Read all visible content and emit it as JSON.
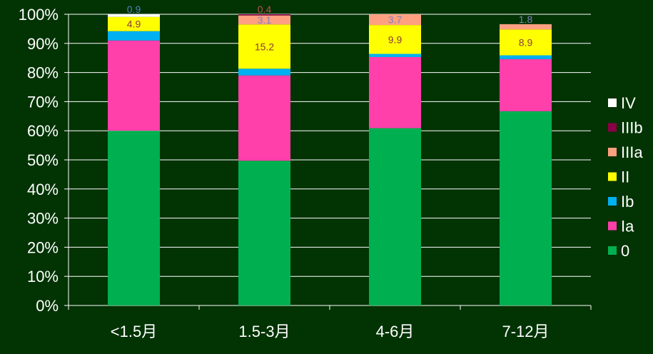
{
  "chart_data": {
    "type": "bar",
    "stacked": true,
    "categories": [
      "<1.5月",
      "1.5-3月",
      "4-6月",
      "7-12月"
    ],
    "series": [
      {
        "name": "0",
        "color": "#00B050",
        "values": [
          60.0,
          49.7,
          60.9,
          66.7
        ]
      },
      {
        "name": "Ia",
        "color": "#FF3FAA",
        "values": [
          31.0,
          29.3,
          24.4,
          17.9
        ]
      },
      {
        "name": "Ib",
        "color": "#00B0F0",
        "values": [
          3.2,
          2.3,
          1.1,
          1.3
        ]
      },
      {
        "name": "II",
        "color": "#FFFF00",
        "values": [
          4.9,
          15.2,
          9.9,
          8.9
        ]
      },
      {
        "name": "IIIa",
        "color": "#FFA080",
        "values": [
          0.0,
          3.1,
          3.7,
          1.8
        ]
      },
      {
        "name": "IIIb",
        "color": "#8B0045",
        "values": [
          0.0,
          0.4,
          0.0,
          0.0
        ]
      },
      {
        "name": "IV",
        "color": "#FFFFFF",
        "values": [
          0.9,
          0.0,
          0.0,
          0.0
        ]
      }
    ],
    "data_labels": [
      {
        "category": 0,
        "series": "II",
        "text": "4.9",
        "color": "#8B3A3A"
      },
      {
        "category": 0,
        "series": "IV",
        "text": "0.9",
        "color": "#4F81BD"
      },
      {
        "category": 1,
        "series": "II",
        "text": "15.2",
        "color": "#8B3A3A"
      },
      {
        "category": 1,
        "series": "IIIa",
        "text": "3.1",
        "color": "#7F7FBF"
      },
      {
        "category": 1,
        "series": "IIIb",
        "text": "0.4",
        "color": "#C0504D"
      },
      {
        "category": 2,
        "series": "II",
        "text": "9.9",
        "color": "#8B3A3A"
      },
      {
        "category": 2,
        "series": "IIIa",
        "text": "3.7",
        "color": "#7F7FBF"
      },
      {
        "category": 3,
        "series": "II",
        "text": "8.9",
        "color": "#8B3A3A"
      },
      {
        "category": 3,
        "series": "IIIa",
        "text": "1.8",
        "color": "#7F7FBF"
      }
    ],
    "y_ticks": [
      "0%",
      "10%",
      "20%",
      "30%",
      "40%",
      "50%",
      "60%",
      "70%",
      "80%",
      "90%",
      "100%"
    ],
    "ylim": [
      0,
      100
    ],
    "legend_order": [
      "IV",
      "IIIb",
      "IIIa",
      "II",
      "Ib",
      "Ia",
      "0"
    ],
    "legend_position": "right",
    "grid": true,
    "gridline_color": "#ffffff",
    "axis_color": "#ffffff"
  }
}
